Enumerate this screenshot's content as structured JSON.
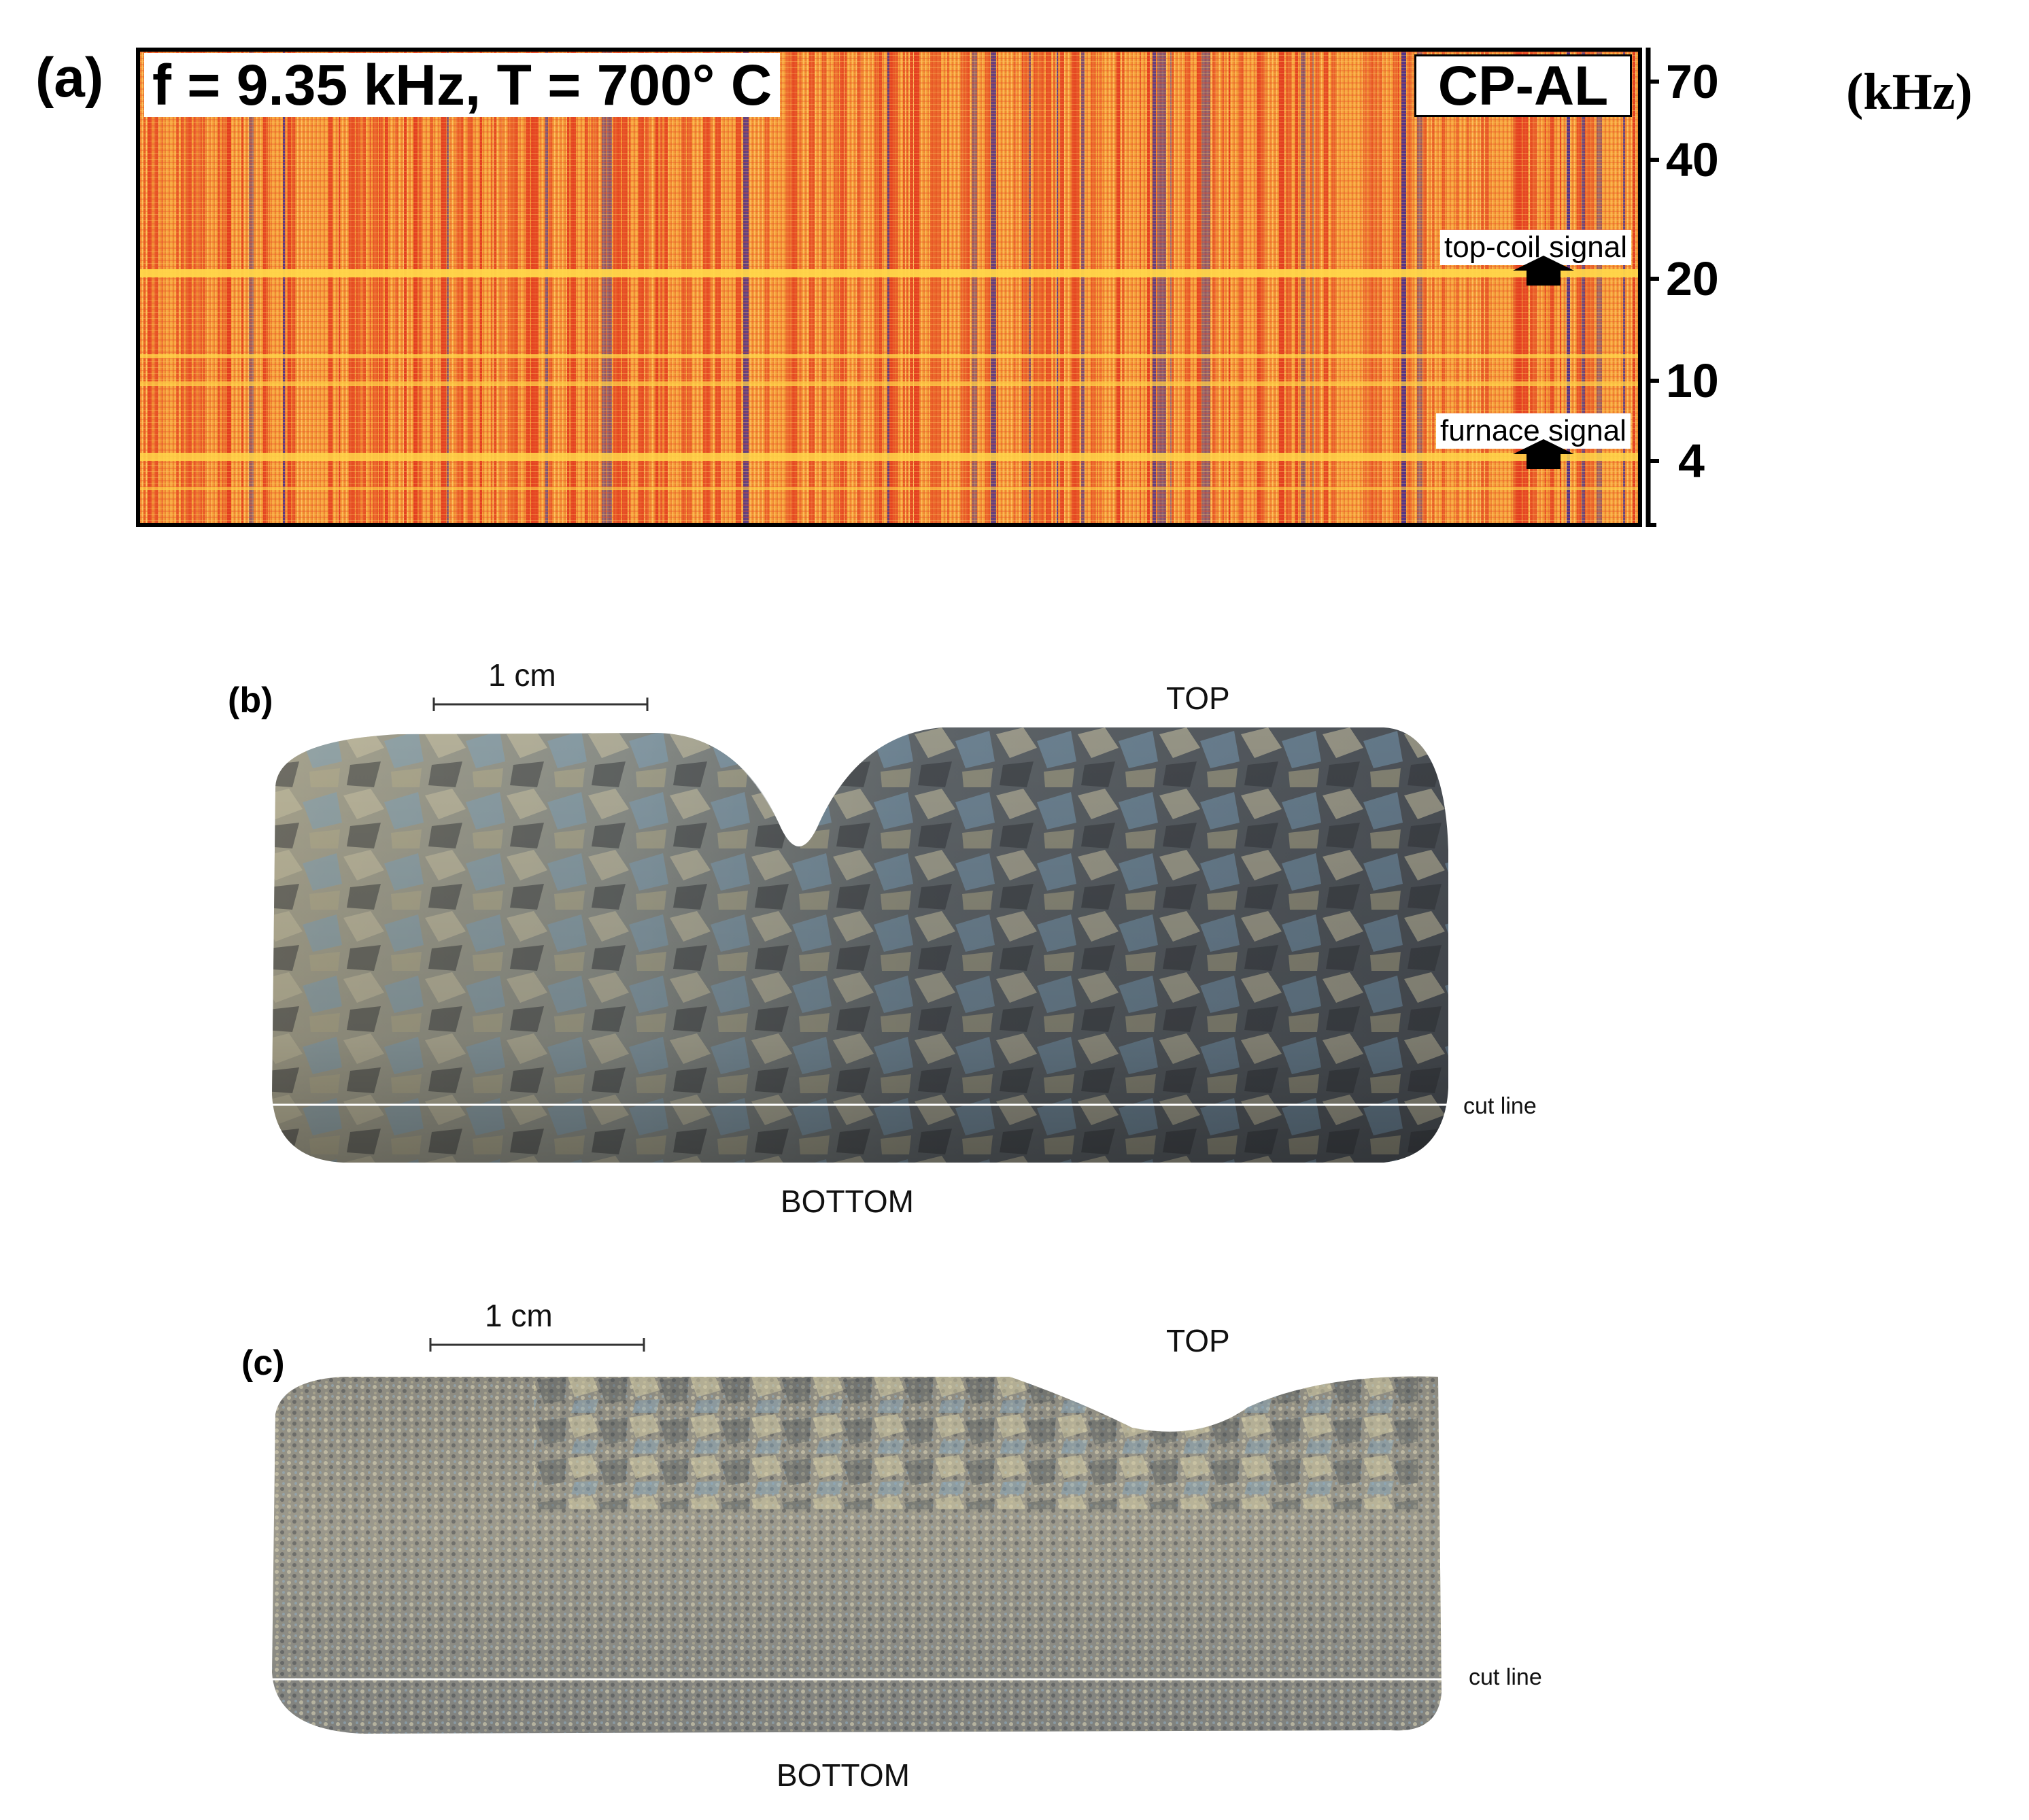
{
  "panel_a": {
    "label": "(a)",
    "title": "f = 9.35 kHz, T = 700° C",
    "tag": "CP-AL",
    "unit": "(kHz)",
    "annotations": {
      "top_coil": "top-coil signal",
      "furnace": "furnace signal"
    },
    "y_ticks": [
      "70",
      "40",
      "20",
      "10",
      "4"
    ],
    "colors": {
      "low": "#f6a33a",
      "mid": "#e23a1f",
      "high": "#4a2f8a",
      "band": "#ffd64a"
    }
  },
  "panel_b": {
    "label": "(b)",
    "scale": "1 cm",
    "top": "TOP",
    "bottom": "BOTTOM",
    "cut_line": "cut line"
  },
  "panel_c": {
    "label": "(c)",
    "scale": "1 cm",
    "top": "TOP",
    "bottom": "BOTTOM",
    "cut_line": "cut line"
  }
}
